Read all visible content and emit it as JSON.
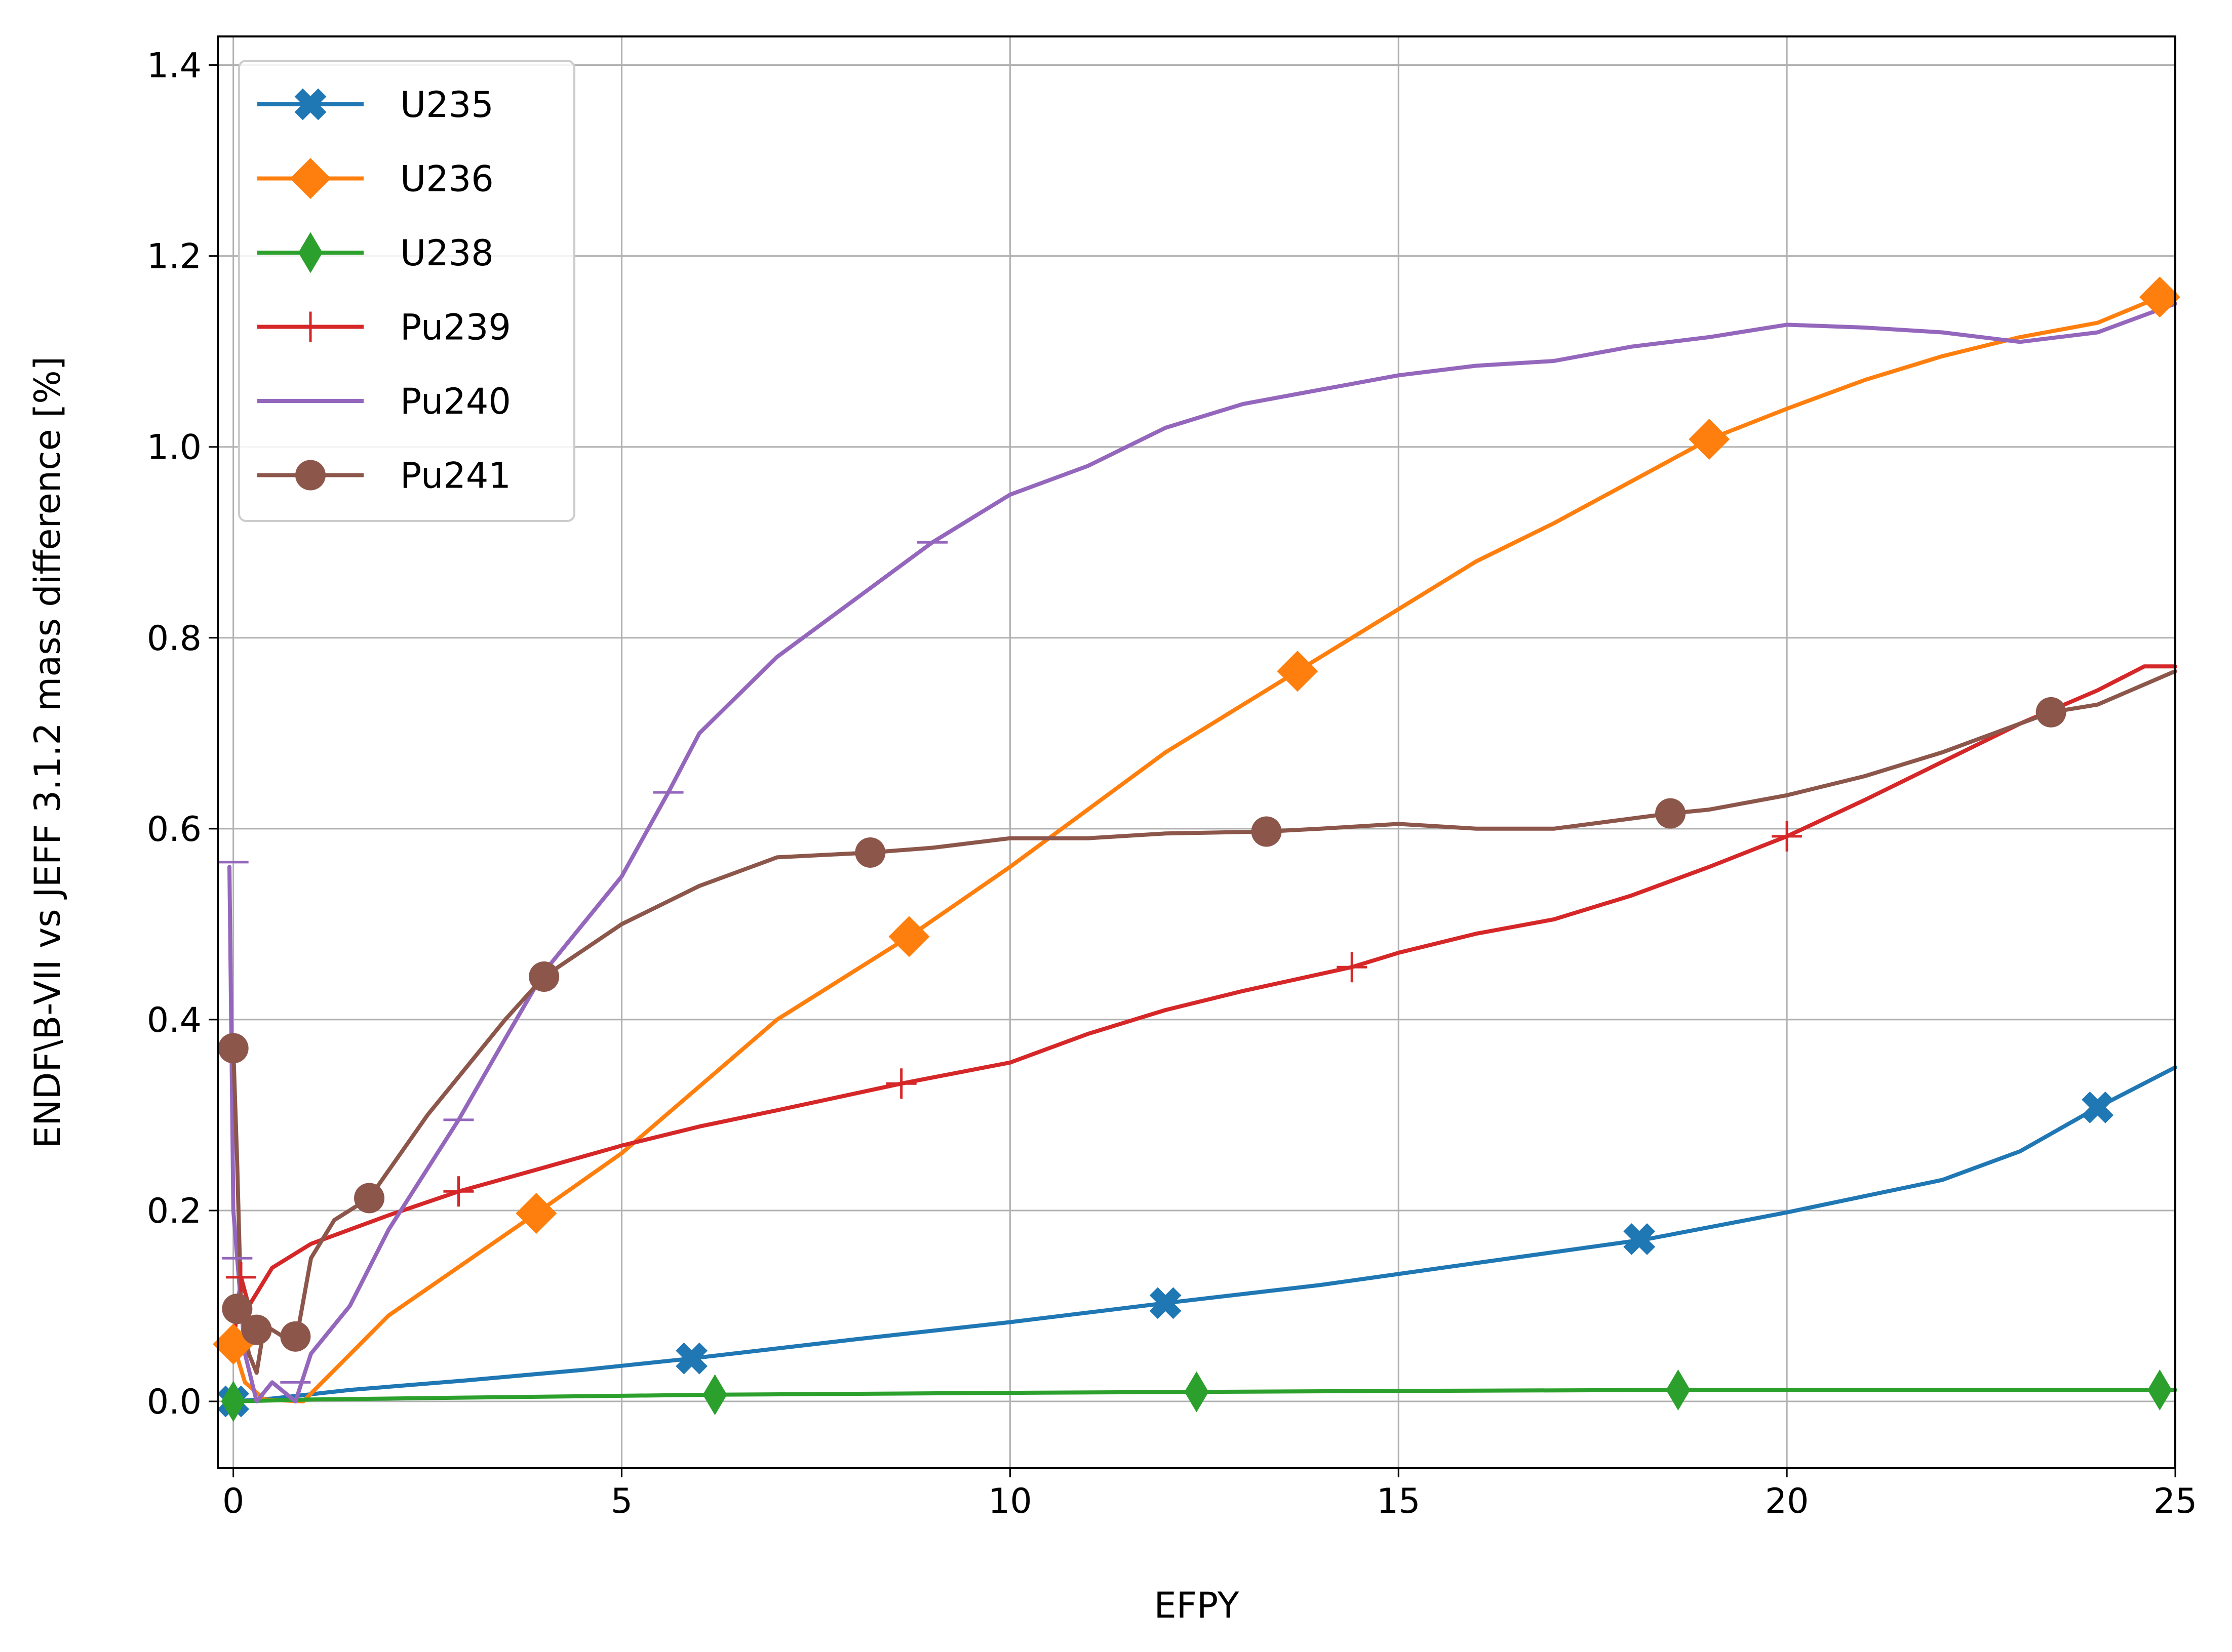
{
  "chart_data": {
    "type": "line",
    "title": "",
    "xlabel": "EFPY",
    "ylabel": "ENDF\\B-VII vs JEFF 3.1.2 mass difference [%]",
    "xlim": [
      -0.2,
      25
    ],
    "ylim": [
      -0.07,
      1.43
    ],
    "xticks": [
      0,
      5,
      10,
      15,
      20,
      25
    ],
    "yticks": [
      0.0,
      0.2,
      0.4,
      0.6,
      0.8,
      1.0,
      1.2,
      1.4
    ],
    "xtick_labels": [
      "0",
      "5",
      "10",
      "15",
      "20",
      "25"
    ],
    "ytick_labels": [
      "0.0",
      "0.2",
      "0.4",
      "0.6",
      "0.8",
      "1.0",
      "1.2",
      "1.4"
    ],
    "grid": true,
    "legend_position": "upper-left",
    "series": [
      {
        "name": "U235",
        "color": "#1f77b4",
        "marker": "x-filled",
        "x": [
          0,
          0.5,
          1.5,
          3,
          4.5,
          5.9,
          8,
          10,
          12,
          14,
          16,
          18.2,
          20,
          22,
          23,
          24,
          25
        ],
        "y": [
          0,
          0.003,
          0.012,
          0.022,
          0.033,
          0.045,
          0.065,
          0.083,
          0.103,
          0.122,
          0.145,
          0.17,
          0.198,
          0.232,
          0.262,
          0.308,
          0.35
        ],
        "marker_x": [
          0,
          5.9,
          12.0,
          18.1,
          24.0
        ],
        "marker_y": [
          0,
          0.045,
          0.103,
          0.17,
          0.308
        ]
      },
      {
        "name": "U236",
        "color": "#ff7f0e",
        "marker": "diamond",
        "x": [
          0,
          0.15,
          0.4,
          0.9,
          2,
          3.9,
          5,
          6,
          7,
          8.7,
          10,
          11,
          12,
          13.7,
          15,
          16,
          17,
          19,
          20,
          21,
          22,
          23,
          24,
          24.8,
          25
        ],
        "y": [
          0.06,
          0.02,
          0.002,
          0.0,
          0.09,
          0.197,
          0.26,
          0.33,
          0.4,
          0.487,
          0.56,
          0.62,
          0.68,
          0.765,
          0.83,
          0.88,
          0.92,
          1.008,
          1.04,
          1.07,
          1.095,
          1.115,
          1.13,
          1.157,
          1.16
        ],
        "marker_x": [
          0,
          3.9,
          8.7,
          13.7,
          19.0,
          24.8
        ],
        "marker_y": [
          0.06,
          0.197,
          0.487,
          0.765,
          1.008,
          1.157
        ]
      },
      {
        "name": "U238",
        "color": "#2ca02c",
        "marker": "thin-diamond",
        "x": [
          0,
          1,
          3,
          6.2,
          10,
          12.4,
          15,
          18.6,
          22,
          24.8,
          25
        ],
        "y": [
          0,
          0.002,
          0.004,
          0.007,
          0.009,
          0.01,
          0.011,
          0.012,
          0.012,
          0.012,
          0.012
        ],
        "marker_x": [
          0,
          6.2,
          12.4,
          18.6,
          24.8
        ],
        "marker_y": [
          0,
          0.007,
          0.01,
          0.012,
          0.012
        ]
      },
      {
        "name": "Pu239",
        "color": "#d62728",
        "marker": "plus",
        "x": [
          0,
          0.1,
          0.2,
          0.5,
          1,
          2,
          2.9,
          4,
          5,
          6,
          7,
          8.6,
          10,
          11,
          12,
          13,
          14.4,
          15,
          16,
          17,
          18,
          19,
          20,
          21,
          22,
          23,
          24,
          24.6,
          25
        ],
        "y": [
          0.06,
          0.13,
          0.1,
          0.14,
          0.165,
          0.195,
          0.22,
          0.245,
          0.268,
          0.288,
          0.305,
          0.333,
          0.355,
          0.385,
          0.41,
          0.43,
          0.455,
          0.47,
          0.49,
          0.505,
          0.53,
          0.56,
          0.592,
          0.63,
          0.67,
          0.71,
          0.745,
          0.77,
          0.77
        ],
        "marker_x": [
          0.1,
          2.9,
          8.6,
          14.4,
          20.0
        ],
        "marker_y": [
          0.13,
          0.22,
          0.333,
          0.455,
          0.592
        ]
      },
      {
        "name": "Pu240",
        "color": "#9467bd",
        "marker": "tick",
        "x": [
          -0.05,
          0.0,
          0.05,
          0.15,
          0.3,
          0.5,
          0.8,
          1,
          1.5,
          2,
          2.9,
          3.5,
          4,
          5,
          5.6,
          6,
          7,
          8,
          9,
          10,
          11,
          12,
          13,
          14,
          15,
          16,
          17,
          18,
          19,
          20,
          21,
          22,
          23,
          24,
          25
        ],
        "y": [
          0.56,
          0.2,
          0.15,
          0.05,
          0.0,
          0.02,
          0.0,
          0.05,
          0.1,
          0.18,
          0.295,
          0.38,
          0.45,
          0.55,
          0.638,
          0.7,
          0.78,
          0.84,
          0.9,
          0.95,
          0.98,
          1.02,
          1.045,
          1.06,
          1.075,
          1.085,
          1.09,
          1.105,
          1.115,
          1.128,
          1.125,
          1.12,
          1.11,
          1.12,
          1.15
        ],
        "marker_x": [
          0.0,
          0.05,
          0.8,
          2.9,
          5.6,
          9.0
        ],
        "marker_y": [
          0.565,
          0.15,
          0.02,
          0.295,
          0.638,
          0.9
        ]
      },
      {
        "name": "Pu241",
        "color": "#8c564b",
        "marker": "circle",
        "x": [
          0,
          0.05,
          0.1,
          0.2,
          0.3,
          0.4,
          0.6,
          0.8,
          1,
          1.3,
          1.75,
          2.5,
          3,
          3.5,
          4,
          5,
          6,
          7,
          8.2,
          9,
          10,
          11,
          12,
          13.3,
          14,
          15,
          16,
          17,
          18.5,
          19,
          20,
          21,
          22,
          23.4,
          24,
          25
        ],
        "y": [
          0.37,
          0.25,
          0.1,
          0.05,
          0.03,
          0.08,
          0.07,
          0.06,
          0.15,
          0.19,
          0.213,
          0.3,
          0.35,
          0.4,
          0.445,
          0.5,
          0.54,
          0.57,
          0.575,
          0.58,
          0.59,
          0.59,
          0.595,
          0.597,
          0.6,
          0.605,
          0.6,
          0.6,
          0.616,
          0.62,
          0.635,
          0.655,
          0.68,
          0.722,
          0.73,
          0.765
        ],
        "marker_x": [
          0,
          0.05,
          0.3,
          0.8,
          1.75,
          4.0,
          8.2,
          13.3,
          18.5,
          23.4
        ],
        "marker_y": [
          0.37,
          0.097,
          0.075,
          0.068,
          0.213,
          0.445,
          0.575,
          0.597,
          0.616,
          0.722
        ]
      }
    ]
  }
}
